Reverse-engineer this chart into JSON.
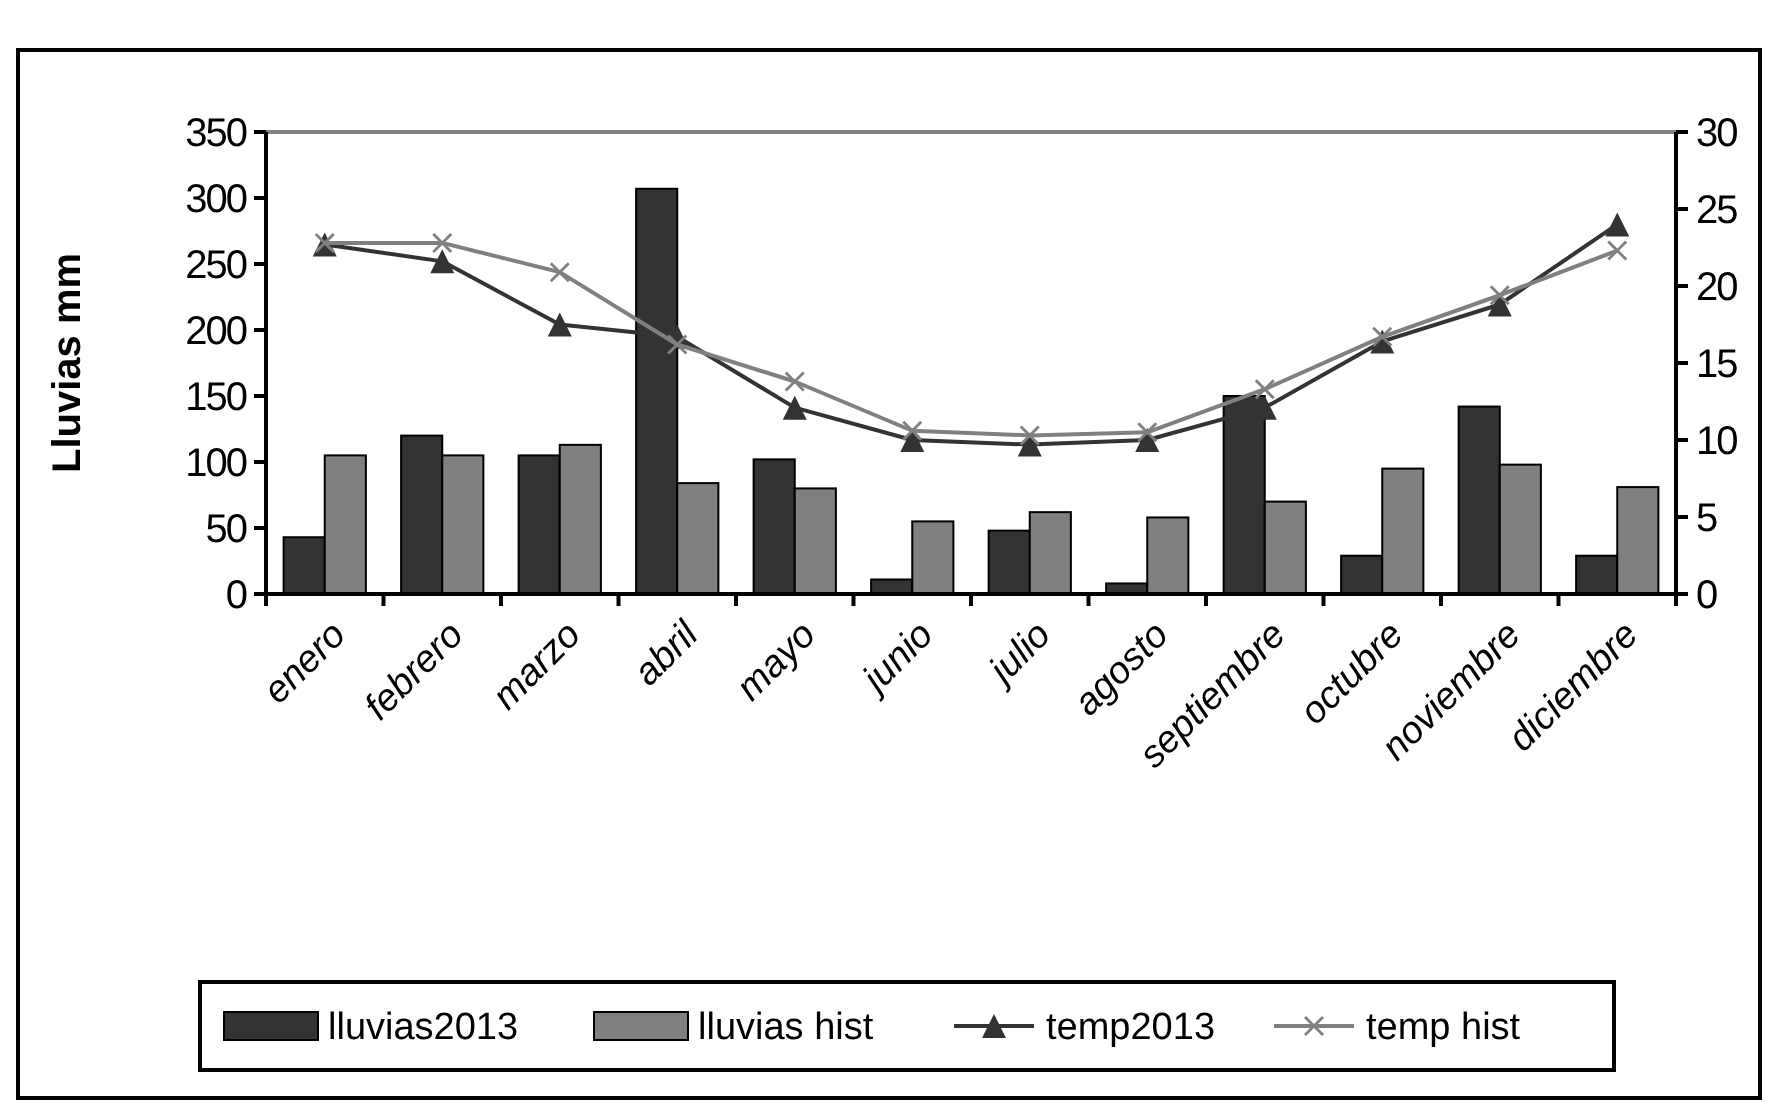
{
  "chart_data": {
    "type": "bar",
    "ylabel": "Lluvias mm",
    "categories": [
      "enero",
      "febrero",
      "marzo",
      "abril",
      "mayo",
      "junio",
      "julio",
      "agosto",
      "septiembre",
      "octubre",
      "noviembre",
      "diciembre"
    ],
    "series": [
      {
        "name": "lluvias2013",
        "color": "#333333",
        "values": [
          43,
          120,
          105,
          307,
          102,
          11,
          48,
          8,
          150,
          29,
          142,
          29
        ]
      },
      {
        "name": "lluvias hist",
        "color": "#808080",
        "values": [
          105,
          105,
          113,
          84,
          80,
          55,
          62,
          58,
          70,
          95,
          98,
          81
        ]
      },
      {
        "name": "temp2013",
        "type": "line",
        "axis": "y2",
        "marker": "triangle",
        "color": "#333333",
        "values": [
          22.7,
          21.6,
          17.5,
          16.7,
          12.1,
          10.0,
          9.7,
          10.0,
          12.1,
          16.4,
          18.8,
          24.0
        ]
      },
      {
        "name": "temp hist",
        "type": "line",
        "axis": "y2",
        "marker": "cross",
        "color": "#808080",
        "values": [
          22.8,
          22.8,
          20.9,
          16.2,
          13.8,
          10.6,
          10.3,
          10.5,
          13.3,
          16.7,
          19.4,
          22.3
        ]
      }
    ],
    "ylim": [
      0,
      350
    ],
    "yticks": [
      0,
      50,
      100,
      150,
      200,
      250,
      300,
      350
    ],
    "y2lim": [
      0,
      30
    ],
    "y2ticks": [
      0,
      5,
      10,
      15,
      20,
      25,
      30
    ],
    "legend": "bottom"
  }
}
